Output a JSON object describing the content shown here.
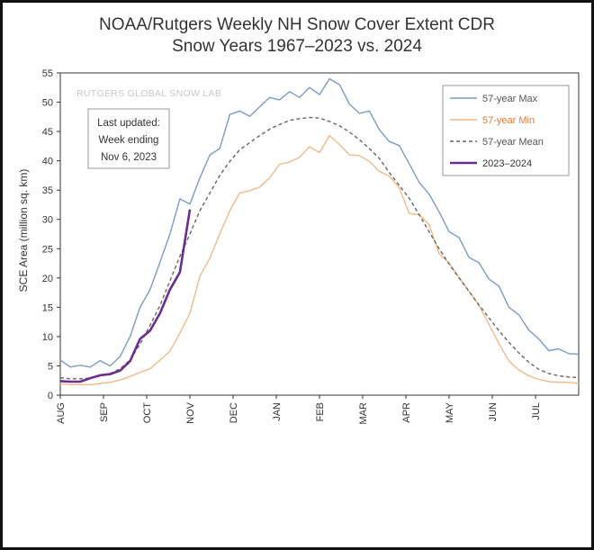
{
  "chart_data": {
    "type": "line",
    "title": "NOAA/Rutgers Weekly NH Snow Cover Extent CDR",
    "subtitle": "Snow Years 1967–2023 vs. 2024",
    "ylabel": "SCE Area (million sq. km)",
    "xlabel": "",
    "ylim": [
      0,
      55
    ],
    "yticks": [
      0,
      5,
      10,
      15,
      20,
      25,
      30,
      35,
      40,
      45,
      50,
      55
    ],
    "xlim": [
      0,
      52
    ],
    "month_ticks": [
      {
        "label": "AUG",
        "week": 0
      },
      {
        "label": "SEP",
        "week": 4.33
      },
      {
        "label": "OCT",
        "week": 8.67
      },
      {
        "label": "NOV",
        "week": 13
      },
      {
        "label": "DEC",
        "week": 17.33
      },
      {
        "label": "JAN",
        "week": 21.67
      },
      {
        "label": "FEB",
        "week": 26
      },
      {
        "label": "MAR",
        "week": 30.33
      },
      {
        "label": "APR",
        "week": 34.67
      },
      {
        "label": "MAY",
        "week": 39
      },
      {
        "label": "JUN",
        "week": 43.33
      },
      {
        "label": "JUL",
        "week": 47.67
      }
    ],
    "grid": false,
    "legend_position": "top-right",
    "watermark": "RUTGERS GLOBAL SNOW LAB",
    "annotation_lines": [
      "Last updated:",
      "Week ending",
      "Nov 6, 2023"
    ],
    "series": [
      {
        "name": "57-year Max",
        "color": "#7a9cc6",
        "dash": "none",
        "x": [
          0,
          1,
          2,
          3,
          4,
          5,
          6,
          7,
          8,
          9,
          10,
          11,
          12,
          13,
          14,
          15,
          16,
          17,
          18,
          19,
          20,
          21,
          22,
          23,
          24,
          25,
          26,
          27,
          28,
          29,
          30,
          31,
          32,
          33,
          34,
          35,
          36,
          37,
          38,
          39,
          40,
          41,
          42,
          43,
          44,
          45,
          46,
          47,
          48,
          49,
          50,
          51,
          52
        ],
        "values": [
          6.0,
          4.8,
          5.1,
          4.8,
          5.9,
          5.0,
          6.6,
          10.0,
          15.0,
          18.0,
          22.7,
          27.5,
          33.5,
          32.6,
          37.1,
          41.0,
          42.1,
          47.9,
          48.5,
          47.6,
          49.2,
          50.8,
          50.4,
          51.8,
          50.8,
          52.5,
          51.3,
          54.0,
          53.0,
          49.7,
          48.1,
          48.5,
          45.3,
          43.3,
          42.6,
          39.5,
          36.3,
          34.3,
          31.3,
          27.9,
          26.9,
          23.5,
          22.6,
          19.8,
          18.6,
          15.0,
          13.7,
          11.1,
          9.6,
          7.6,
          7.9,
          7.1,
          7.0
        ]
      },
      {
        "name": "57-year Min",
        "color": "#f2b98a",
        "dash": "none",
        "x": [
          0,
          1,
          2,
          3,
          4,
          5,
          6,
          7,
          8,
          9,
          10,
          11,
          12,
          13,
          14,
          15,
          16,
          17,
          18,
          19,
          20,
          21,
          22,
          23,
          24,
          25,
          26,
          27,
          28,
          29,
          30,
          31,
          32,
          33,
          34,
          35,
          36,
          37,
          38,
          39,
          40,
          41,
          42,
          43,
          44,
          45,
          46,
          47,
          48,
          49,
          50,
          51,
          52
        ],
        "values": [
          1.9,
          1.8,
          1.8,
          1.8,
          2.0,
          2.2,
          2.6,
          3.2,
          3.9,
          4.5,
          6.0,
          7.5,
          10.6,
          14.0,
          20.3,
          23.4,
          27.5,
          31.5,
          34.5,
          34.9,
          35.5,
          37.1,
          39.4,
          39.8,
          40.6,
          42.4,
          41.4,
          44.3,
          42.8,
          41.0,
          40.9,
          39.9,
          38.2,
          37.4,
          35.4,
          31.0,
          30.8,
          29.1,
          24.2,
          22.5,
          20.1,
          17.7,
          15.3,
          12.1,
          8.8,
          5.8,
          4.3,
          3.3,
          2.7,
          2.3,
          2.2,
          2.2,
          2.0
        ]
      },
      {
        "name": "57-year Mean",
        "color": "#666666",
        "dash": "4,3",
        "x": [
          0,
          1,
          2,
          3,
          4,
          5,
          6,
          7,
          8,
          9,
          10,
          11,
          12,
          13,
          14,
          15,
          16,
          17,
          18,
          19,
          20,
          21,
          22,
          23,
          24,
          25,
          26,
          27,
          28,
          29,
          30,
          31,
          32,
          33,
          34,
          35,
          36,
          37,
          38,
          39,
          40,
          41,
          42,
          43,
          44,
          45,
          46,
          47,
          48,
          49,
          50,
          51,
          52
        ],
        "values": [
          3.0,
          2.8,
          2.8,
          2.9,
          3.3,
          3.7,
          4.5,
          6.0,
          8.7,
          11.9,
          15.3,
          19.5,
          23.7,
          27.5,
          31.5,
          34.5,
          37.5,
          39.9,
          41.9,
          43.1,
          44.3,
          45.4,
          46.2,
          46.9,
          47.2,
          47.4,
          47.3,
          46.7,
          46.0,
          44.9,
          43.6,
          42.1,
          40.4,
          38.0,
          35.8,
          33.6,
          30.8,
          27.9,
          25.0,
          22.4,
          20.0,
          17.7,
          15.4,
          13.2,
          11.0,
          9.0,
          7.2,
          5.6,
          4.4,
          3.7,
          3.3,
          3.1,
          3.0
        ]
      },
      {
        "name": "2023–2024",
        "color": "#6b2d8e",
        "dash": "none",
        "x": [
          0,
          1,
          2,
          3,
          4,
          5,
          6,
          7,
          8,
          9,
          10,
          11,
          12,
          13
        ],
        "values": [
          2.4,
          2.3,
          2.3,
          2.9,
          3.4,
          3.6,
          4.2,
          5.8,
          9.6,
          11.0,
          14.0,
          18.0,
          21.0,
          31.7
        ]
      }
    ]
  }
}
